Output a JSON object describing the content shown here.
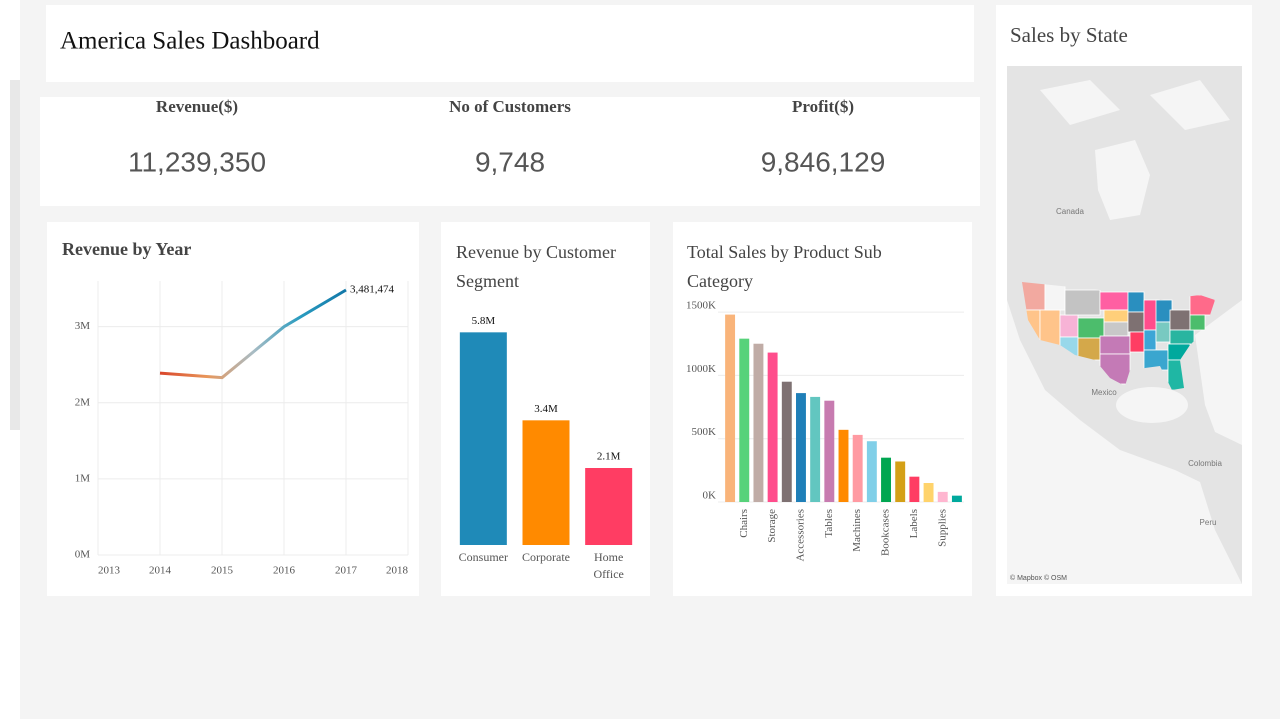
{
  "header": {
    "title": "America Sales Dashboard"
  },
  "kpis": [
    {
      "label": "Revenue($)",
      "value": "11,239,350"
    },
    {
      "label": "No of Customers",
      "value": "9,748"
    },
    {
      "label": "Profit($)",
      "value": "9,846,129"
    }
  ],
  "chart_data": [
    {
      "type": "line",
      "title": "Revenue by Year",
      "x": [
        2014,
        2015,
        2016,
        2017
      ],
      "values": [
        2390000,
        2330000,
        3000000,
        3481474
      ],
      "value_labels": [
        null,
        null,
        null,
        "3,481,474"
      ],
      "xlim": [
        2013,
        2018
      ],
      "xticks": [
        2013,
        2014,
        2015,
        2016,
        2017,
        2018
      ],
      "ylim": [
        0,
        3600000
      ],
      "yticks": [
        {
          "value": 0,
          "label": "0M"
        },
        {
          "value": 1000000,
          "label": "1M"
        },
        {
          "value": 2000000,
          "label": "2M"
        },
        {
          "value": 3000000,
          "label": "3M"
        }
      ],
      "grid": true,
      "colors": [
        "#d9452a",
        "#e8965a",
        "#a9bcc4",
        "#2a9cc0",
        "#1177a8"
      ]
    },
    {
      "type": "bar",
      "title": "Revenue by Customer Segment",
      "categories": [
        "Consumer",
        "Corporate",
        "Home Office"
      ],
      "values": [
        5800000,
        3400000,
        2100000
      ],
      "value_labels": [
        "5.8M",
        "3.4M",
        "2.1M"
      ],
      "ylim": [
        0,
        6000000
      ],
      "colors": [
        "#1f8ab8",
        "#ff8a00",
        "#ff3d63"
      ]
    },
    {
      "type": "bar",
      "title": "Total Sales by Product Sub Category",
      "categories": [
        null,
        "Chairs",
        null,
        "Storage",
        null,
        "Accessories",
        null,
        "Tables",
        null,
        "Machines",
        null,
        "Bookcases",
        null,
        "Labels",
        null,
        "Supplies",
        null
      ],
      "values": [
        1480000,
        1290000,
        1250000,
        1180000,
        950000,
        860000,
        830000,
        800000,
        570000,
        530000,
        480000,
        350000,
        320000,
        200000,
        150000,
        80000,
        50000
      ],
      "ylim": [
        0,
        1540000
      ],
      "yticks": [
        {
          "value": 0,
          "label": "0K"
        },
        {
          "value": 500000,
          "label": "500K"
        },
        {
          "value": 1000000,
          "label": "1000K"
        },
        {
          "value": 1500000,
          "label": "1500K"
        }
      ],
      "grid": true,
      "colors": [
        "#f9b47a",
        "#57d27a",
        "#c0aca6",
        "#ff4d8c",
        "#7e7172",
        "#1f7fb8",
        "#62c6c0",
        "#c77bb0",
        "#ff8a00",
        "#ff9aa2",
        "#80cfe8",
        "#00a651",
        "#d4a017",
        "#ff3d63",
        "#ffd36b",
        "#ffb6d0",
        "#00a99d"
      ]
    }
  ],
  "map": {
    "title": "Sales by State",
    "labels": [
      "Canada",
      "Mexico",
      "Colombia",
      "Peru"
    ],
    "credit": "© Mapbox © OSM"
  }
}
